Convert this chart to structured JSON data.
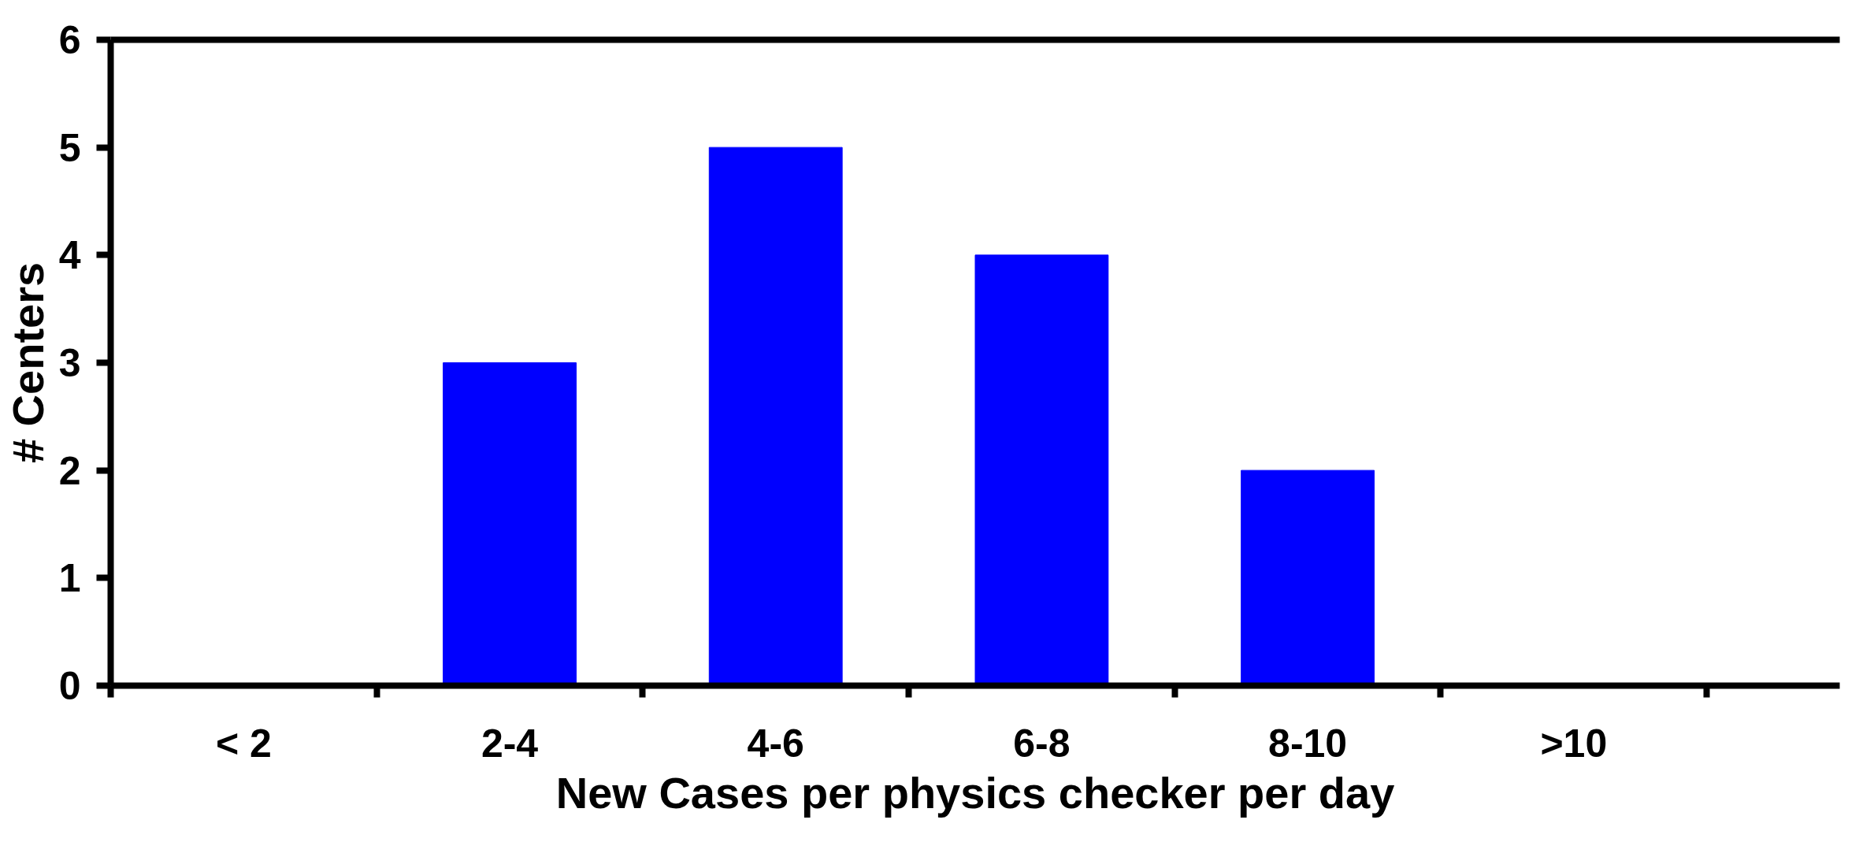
{
  "chart_data": {
    "type": "bar",
    "xlabel": "New Cases per physics checker per day",
    "ylabel": "# Centers",
    "categories": [
      "< 2",
      "2-4",
      "4-6",
      "6-8",
      "8-10",
      ">10"
    ],
    "values": [
      0,
      3,
      5,
      4,
      2,
      0
    ],
    "color": "#0000ff",
    "ylim": [
      0,
      6
    ],
    "yticks": [
      0,
      1,
      2,
      3,
      4,
      5,
      6
    ],
    "grid": false
  }
}
